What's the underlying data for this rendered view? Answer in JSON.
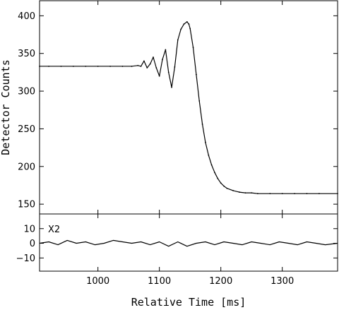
{
  "chart_data": [
    {
      "type": "line",
      "xlabel": "",
      "ylabel": "Detector Counts",
      "xlim": [
        905,
        1390
      ],
      "ylim": [
        137,
        420
      ],
      "x_ticks": [
        1000,
        1100,
        1200,
        1300
      ],
      "y_ticks": [
        150,
        200,
        250,
        300,
        350,
        400
      ],
      "y_tick_labels": [
        "150",
        "200",
        "250",
        "300",
        "350",
        "400"
      ],
      "grid": false,
      "series": [
        {
          "kind": "fit-curve",
          "x": [
            905,
            920,
            940,
            960,
            980,
            1000,
            1020,
            1040,
            1055,
            1065,
            1070,
            1075,
            1080,
            1085,
            1090,
            1095,
            1100,
            1105,
            1110,
            1115,
            1120,
            1125,
            1130,
            1135,
            1140,
            1145,
            1148,
            1150,
            1155,
            1160,
            1165,
            1170,
            1175,
            1180,
            1185,
            1190,
            1195,
            1200,
            1205,
            1210,
            1220,
            1230,
            1240,
            1250,
            1260,
            1280,
            1300,
            1320,
            1340,
            1360,
            1390
          ],
          "y": [
            333,
            333,
            333,
            333,
            333,
            333,
            333,
            333,
            333,
            334,
            333,
            340,
            331,
            336,
            345,
            331,
            320,
            342,
            355,
            325,
            305,
            332,
            368,
            382,
            389,
            392,
            389,
            383,
            358,
            322,
            287,
            256,
            232,
            215,
            202,
            192,
            184,
            178,
            174,
            171,
            168,
            166,
            165,
            165,
            164,
            164,
            164,
            164,
            164,
            164,
            164
          ]
        }
      ]
    },
    {
      "type": "line",
      "xlabel": "Relative Time [ms]",
      "ylabel": "",
      "xlim": [
        905,
        1390
      ],
      "ylim": [
        -19,
        20
      ],
      "x_ticks": [
        1000,
        1100,
        1200,
        1300
      ],
      "x_tick_labels": [
        "1000",
        "1100",
        "1200",
        "1300"
      ],
      "y_ticks": [
        -10,
        0,
        10
      ],
      "y_tick_labels": [
        "−10",
        "0",
        "10"
      ],
      "grid": false,
      "annotation": "X2",
      "series": [
        {
          "kind": "residuals",
          "x": [
            905,
            920,
            935,
            950,
            965,
            980,
            995,
            1010,
            1025,
            1040,
            1055,
            1070,
            1085,
            1100,
            1115,
            1130,
            1145,
            1160,
            1175,
            1190,
            1205,
            1220,
            1235,
            1250,
            1265,
            1280,
            1295,
            1310,
            1325,
            1340,
            1355,
            1370,
            1390
          ],
          "y": [
            0,
            1,
            -1,
            2,
            0,
            1,
            -1,
            0,
            2,
            1,
            0,
            1,
            -1,
            1,
            -2,
            1,
            -2,
            0,
            1,
            -1,
            1,
            0,
            -1,
            1,
            0,
            -1,
            1,
            0,
            -1,
            1,
            0,
            -1,
            0
          ]
        }
      ]
    }
  ]
}
